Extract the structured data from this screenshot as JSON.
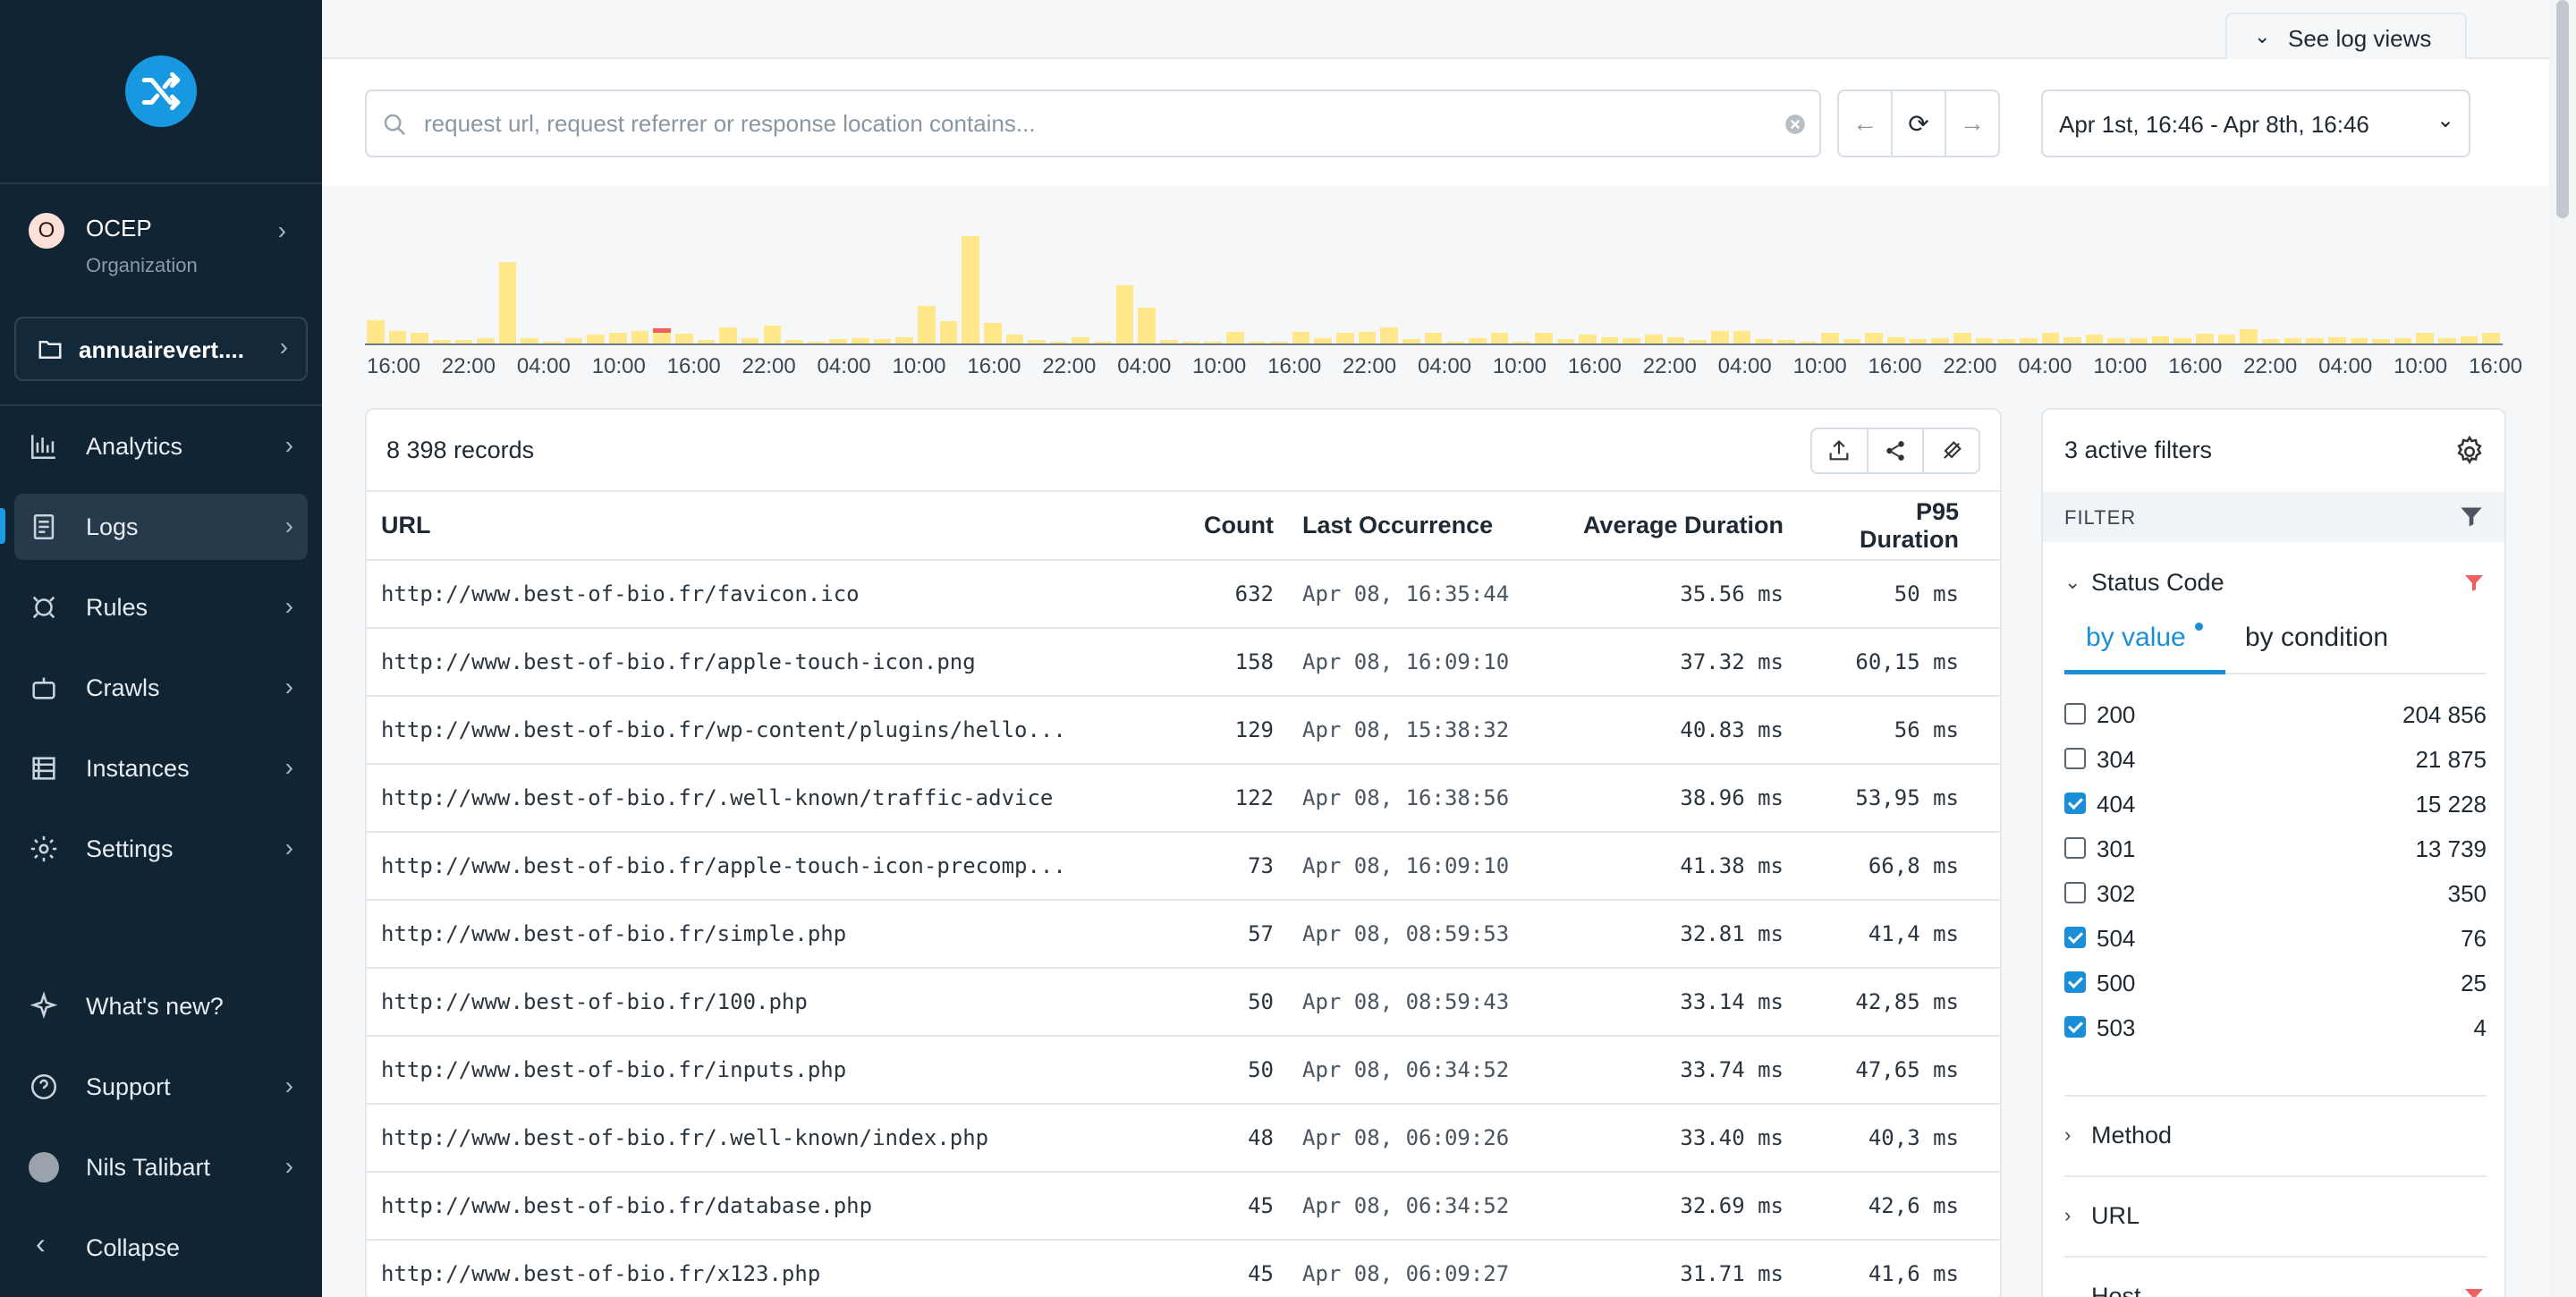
{
  "sidebar": {
    "org": {
      "badge": "O",
      "name": "OCEP",
      "subtitle": "Organization"
    },
    "project": "annuairevert....",
    "nav": [
      {
        "label": "Analytics",
        "icon": "analytics-icon"
      },
      {
        "label": "Logs",
        "icon": "logs-icon",
        "active": true
      },
      {
        "label": "Rules",
        "icon": "rules-icon"
      },
      {
        "label": "Crawls",
        "icon": "crawls-icon"
      },
      {
        "label": "Instances",
        "icon": "instances-icon"
      },
      {
        "label": "Settings",
        "icon": "settings-icon"
      }
    ],
    "bottom": {
      "whats_new": "What's new?",
      "support": "Support",
      "user": "Nils Talibart",
      "collapse": "Collapse"
    }
  },
  "header": {
    "log_views": "See log views",
    "search_placeholder": "request url, request referrer or response location contains...",
    "date_range": "Apr 1st, 16:46 - Apr 8th, 16:46"
  },
  "histogram": {
    "ticks": [
      "16:00",
      "22:00",
      "04:00",
      "10:00",
      "16:00",
      "22:00",
      "04:00",
      "10:00",
      "16:00",
      "22:00",
      "04:00",
      "10:00",
      "16:00",
      "22:00",
      "04:00",
      "10:00",
      "16:00",
      "22:00",
      "04:00",
      "10:00",
      "16:00",
      "22:00",
      "04:00",
      "10:00",
      "16:00",
      "22:00",
      "04:00",
      "10:00",
      "16:00"
    ],
    "bars": [
      0.22,
      0.12,
      0.1,
      0.03,
      0.03,
      0.05,
      0.76,
      0.05,
      0.02,
      0.05,
      0.08,
      0.1,
      0.12,
      0.14,
      0.09,
      0.03,
      0.15,
      0.05,
      0.17,
      0.03,
      0.02,
      0.04,
      0.05,
      0.04,
      0.06,
      0.35,
      0.21,
      1.0,
      0.19,
      0.08,
      0.03,
      0.02,
      0.06,
      0.02,
      0.54,
      0.33,
      0.03,
      0.02,
      0.02,
      0.11,
      0.02,
      0.02,
      0.11,
      0.05,
      0.1,
      0.11,
      0.15,
      0.04,
      0.1,
      0.02,
      0.05,
      0.1,
      0.02,
      0.1,
      0.04,
      0.08,
      0.06,
      0.05,
      0.08,
      0.06,
      0.03,
      0.12,
      0.12,
      0.04,
      0.03,
      0.02,
      0.1,
      0.04,
      0.1,
      0.06,
      0.04,
      0.05,
      0.1,
      0.05,
      0.04,
      0.05,
      0.1,
      0.06,
      0.08,
      0.05,
      0.05,
      0.07,
      0.05,
      0.09,
      0.08,
      0.13,
      0.04,
      0.05,
      0.05,
      0.06,
      0.05,
      0.04,
      0.05,
      0.1,
      0.05,
      0.07,
      0.1
    ],
    "error_bar_index": 13,
    "colors": {
      "bar": "#ffe78a",
      "error": "#ef6060"
    }
  },
  "table": {
    "records": "8 398 records",
    "columns": [
      "URL",
      "Count",
      "Last Occurrence",
      "Average Duration",
      "P95 Duration"
    ],
    "rows": [
      [
        "http://www.best-of-bio.fr/favicon.ico",
        "632",
        "Apr 08, 16:35:44",
        "35.56 ms",
        "50 ms"
      ],
      [
        "http://www.best-of-bio.fr/apple-touch-icon.png",
        "158",
        "Apr 08, 16:09:10",
        "37.32 ms",
        "60,15 ms"
      ],
      [
        "http://www.best-of-bio.fr/wp-content/plugins/hello...",
        "129",
        "Apr 08, 15:38:32",
        "40.83 ms",
        "56 ms"
      ],
      [
        "http://www.best-of-bio.fr/.well-known/traffic-advice",
        "122",
        "Apr 08, 16:38:56",
        "38.96 ms",
        "53,95 ms"
      ],
      [
        "http://www.best-of-bio.fr/apple-touch-icon-precomp...",
        "73",
        "Apr 08, 16:09:10",
        "41.38 ms",
        "66,8 ms"
      ],
      [
        "http://www.best-of-bio.fr/simple.php",
        "57",
        "Apr 08, 08:59:53",
        "32.81 ms",
        "41,4 ms"
      ],
      [
        "http://www.best-of-bio.fr/100.php",
        "50",
        "Apr 08, 08:59:43",
        "33.14 ms",
        "42,85 ms"
      ],
      [
        "http://www.best-of-bio.fr/inputs.php",
        "50",
        "Apr 08, 06:34:52",
        "33.74 ms",
        "47,65 ms"
      ],
      [
        "http://www.best-of-bio.fr/.well-known/index.php",
        "48",
        "Apr 08, 06:09:26",
        "33.40 ms",
        "40,3 ms"
      ],
      [
        "http://www.best-of-bio.fr/database.php",
        "45",
        "Apr 08, 06:34:52",
        "32.69 ms",
        "42,6 ms"
      ],
      [
        "http://www.best-of-bio.fr/x123.php",
        "45",
        "Apr 08, 06:09:27",
        "31.71 ms",
        "41,6 ms"
      ]
    ]
  },
  "filters": {
    "title": "3 active filters",
    "filter_label": "FILTER",
    "status_code": {
      "title": "Status Code",
      "tabs": [
        "by value",
        "by condition"
      ],
      "values": [
        {
          "code": "200",
          "count": "204 856",
          "checked": false
        },
        {
          "code": "304",
          "count": "21 875",
          "checked": false
        },
        {
          "code": "404",
          "count": "15 228",
          "checked": true
        },
        {
          "code": "301",
          "count": "13 739",
          "checked": false
        },
        {
          "code": "302",
          "count": "350",
          "checked": false
        },
        {
          "code": "504",
          "count": "76",
          "checked": true
        },
        {
          "code": "500",
          "count": "25",
          "checked": true
        },
        {
          "code": "503",
          "count": "4",
          "checked": true
        }
      ]
    },
    "sections": [
      "Method",
      "URL",
      "Host"
    ]
  },
  "colors": {
    "sidebar": "#102433",
    "accent": "#1a8fd8",
    "filter_active": "#ef6060"
  }
}
